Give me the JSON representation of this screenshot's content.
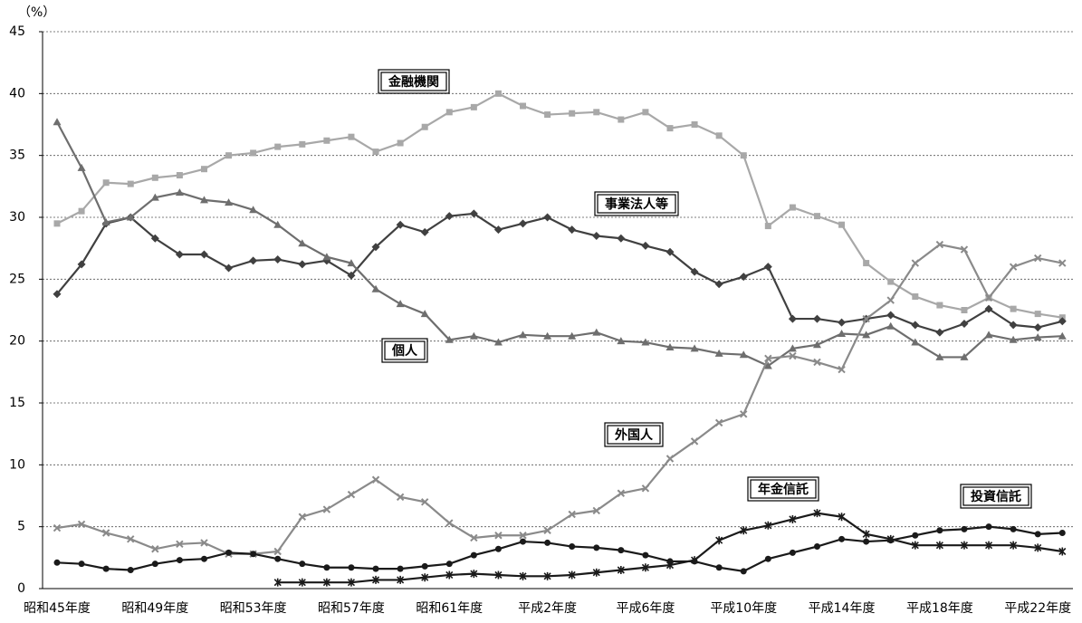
{
  "chart_data": {
    "type": "line",
    "y_label": "（%）",
    "categories": [
      "昭和45年度",
      null,
      null,
      null,
      "昭和49年度",
      null,
      null,
      null,
      "昭和53年度",
      null,
      null,
      null,
      "昭和57年度",
      null,
      null,
      null,
      "昭和61年度",
      null,
      null,
      null,
      "平成2年度",
      null,
      null,
      null,
      "平成6年度",
      null,
      null,
      null,
      "平成10年度",
      null,
      null,
      null,
      "平成14年度",
      null,
      null,
      null,
      "平成18年度",
      null,
      null,
      null,
      "平成22年度",
      null
    ],
    "series": [
      {
        "name": "金融機関",
        "color": "#a8a8a8",
        "marker": "square",
        "values": [
          29.5,
          30.5,
          32.8,
          32.7,
          33.2,
          33.4,
          33.9,
          35.0,
          35.2,
          35.7,
          35.9,
          36.2,
          36.5,
          35.3,
          36.0,
          37.3,
          38.5,
          38.9,
          40.0,
          39.0,
          38.3,
          38.4,
          38.5,
          37.9,
          38.5,
          37.2,
          37.5,
          36.6,
          35.0,
          29.3,
          30.8,
          30.1,
          29.4,
          26.3,
          24.8,
          23.6,
          22.9,
          22.5,
          23.5,
          22.6,
          22.2,
          21.9
        ]
      },
      {
        "name": "事業法人等",
        "color": "#404040",
        "marker": "diamond",
        "values": [
          23.8,
          26.2,
          29.5,
          30.0,
          28.3,
          27.0,
          27.0,
          25.9,
          26.5,
          26.6,
          26.2,
          26.5,
          25.3,
          27.6,
          29.4,
          28.8,
          30.1,
          30.3,
          29.0,
          29.5,
          30.0,
          29.0,
          28.5,
          28.3,
          27.7,
          27.2,
          25.6,
          24.6,
          25.2,
          26.0,
          21.8,
          21.8,
          21.5,
          21.8,
          22.1,
          21.3,
          20.7,
          21.4,
          22.6,
          21.3,
          21.1,
          21.6
        ]
      },
      {
        "name": "個人",
        "color": "#6e6e6e",
        "marker": "triangle",
        "values": [
          37.7,
          34.0,
          29.6,
          30.0,
          31.6,
          32.0,
          31.4,
          31.2,
          30.6,
          29.4,
          27.9,
          26.8,
          26.3,
          24.2,
          23.0,
          22.2,
          20.1,
          20.4,
          19.9,
          20.5,
          20.4,
          20.4,
          20.7,
          20.0,
          19.9,
          19.5,
          19.4,
          19.0,
          18.9,
          18.0,
          19.4,
          19.7,
          20.6,
          20.5,
          21.2,
          19.9,
          18.7,
          18.7,
          20.5,
          20.1,
          20.3,
          20.4
        ]
      },
      {
        "name": "外国人",
        "color": "#8a8a8a",
        "marker": "cross",
        "values": [
          4.9,
          5.2,
          4.5,
          4.0,
          3.2,
          3.6,
          3.7,
          2.8,
          2.8,
          3.0,
          5.8,
          6.4,
          7.6,
          8.8,
          7.4,
          7.0,
          5.3,
          4.1,
          4.3,
          4.3,
          4.7,
          6.0,
          6.3,
          7.7,
          8.1,
          10.5,
          11.9,
          13.4,
          14.1,
          18.6,
          18.8,
          18.3,
          17.7,
          21.8,
          23.3,
          26.3,
          27.8,
          27.4,
          23.5,
          26.0,
          26.7,
          26.3
        ]
      },
      {
        "name": "年金信託",
        "color": "#1a1a1a",
        "marker": "asterisk",
        "values": [
          null,
          null,
          null,
          null,
          null,
          null,
          null,
          null,
          null,
          0.5,
          0.5,
          0.5,
          0.5,
          0.7,
          0.7,
          0.9,
          1.1,
          1.2,
          1.1,
          1.0,
          1.0,
          1.1,
          1.3,
          1.5,
          1.7,
          1.9,
          2.3,
          3.9,
          4.7,
          5.1,
          5.6,
          6.1,
          5.8,
          4.4,
          4.0,
          3.5,
          3.5,
          3.5,
          3.5,
          3.5,
          3.3,
          3.0
        ]
      },
      {
        "name": "投資信託",
        "color": "#1a1a1a",
        "marker": "circle",
        "values": [
          2.1,
          2.0,
          1.6,
          1.5,
          2.0,
          2.3,
          2.4,
          2.9,
          2.8,
          2.4,
          2.0,
          1.7,
          1.7,
          1.6,
          1.6,
          1.8,
          2.0,
          2.7,
          3.2,
          3.8,
          3.7,
          3.4,
          3.3,
          3.1,
          2.7,
          2.2,
          2.2,
          1.7,
          1.4,
          2.4,
          2.9,
          3.4,
          4.0,
          3.8,
          3.9,
          4.3,
          4.7,
          4.8,
          5.0,
          4.8,
          4.4,
          4.5
        ]
      }
    ],
    "ylim": [
      0,
      45
    ],
    "yticks": [
      0,
      5,
      10,
      15,
      20,
      25,
      30,
      35,
      40,
      45
    ],
    "grid": true
  }
}
